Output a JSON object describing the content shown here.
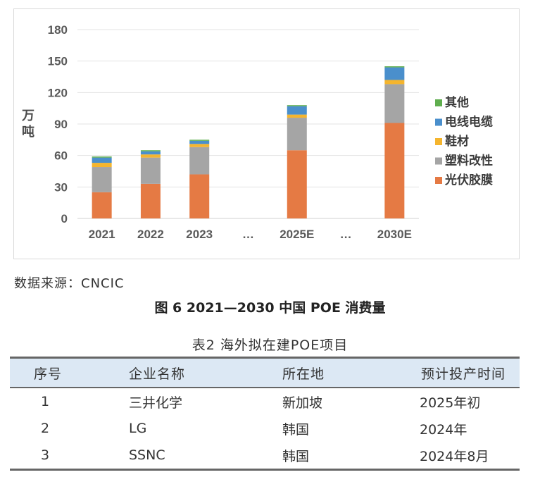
{
  "chart_data": {
    "type": "bar",
    "stacked": true,
    "categories": [
      "2021",
      "2022",
      "2023",
      "…",
      "2025E",
      "…",
      "2030E"
    ],
    "ylabel": "万吨",
    "ylim": [
      0,
      180
    ],
    "yticks": [
      "0",
      "30",
      "60",
      "90",
      "120",
      "150",
      "180"
    ],
    "grid": true,
    "legend_position": "right",
    "series": [
      {
        "name": "光伏胶膜",
        "color": "#E57A44",
        "values": [
          25,
          33,
          42,
          null,
          65,
          null,
          91
        ]
      },
      {
        "name": "塑料改性",
        "color": "#A5A5A5",
        "values": [
          24,
          25,
          26,
          null,
          31,
          null,
          37
        ]
      },
      {
        "name": "鞋材",
        "color": "#F5B52E",
        "values": [
          4,
          3,
          3,
          null,
          3,
          null,
          4
        ]
      },
      {
        "name": "电线电缆",
        "color": "#4A8FCC",
        "values": [
          5,
          3,
          3,
          null,
          8,
          null,
          12
        ]
      },
      {
        "name": "其他",
        "color": "#5FAE4E",
        "values": [
          1,
          1,
          1,
          null,
          1,
          null,
          1
        ]
      }
    ]
  },
  "source": "数据来源：CNCIC",
  "figure_caption": "图 6 2021—2030 中国 POE 消费量",
  "table": {
    "caption": "表2 海外拟在建POE项目",
    "headers": [
      "序号",
      "企业名称",
      "所在地",
      "预计投产时间"
    ],
    "rows": [
      [
        "1",
        "三井化学",
        "新加坡",
        "2025年初"
      ],
      [
        "2",
        "LG",
        "韩国",
        "2024年"
      ],
      [
        "3",
        "SSNC",
        "韩国",
        "2024年8月"
      ]
    ]
  }
}
